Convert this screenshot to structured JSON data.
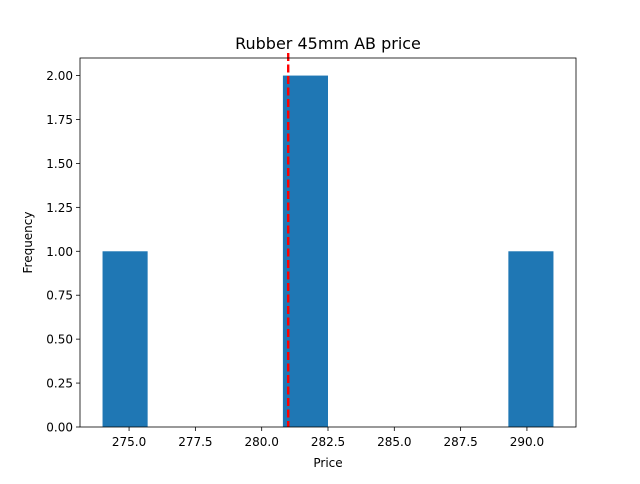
{
  "chart_data": {
    "type": "bar",
    "title": "Rubber 45mm AB price",
    "xlabel": "Price",
    "ylabel": "Frequency",
    "bins": [
      {
        "x0": 274.0,
        "x1": 275.7,
        "count": 1
      },
      {
        "x0": 275.7,
        "x1": 277.4,
        "count": 0
      },
      {
        "x0": 277.4,
        "x1": 279.1,
        "count": 0
      },
      {
        "x0": 279.1,
        "x1": 280.8,
        "count": 0
      },
      {
        "x0": 280.8,
        "x1": 282.5,
        "count": 2
      },
      {
        "x0": 282.5,
        "x1": 284.2,
        "count": 0
      },
      {
        "x0": 284.2,
        "x1": 285.9,
        "count": 0
      },
      {
        "x0": 285.9,
        "x1": 287.6,
        "count": 0
      },
      {
        "x0": 287.6,
        "x1": 289.3,
        "count": 0
      },
      {
        "x0": 289.3,
        "x1": 291.0,
        "count": 1
      }
    ],
    "mean_line": {
      "x": 281.0,
      "color": "#ff0000",
      "style": "dashed"
    },
    "xlim": [
      273.15,
      291.85
    ],
    "ylim": [
      0,
      2.1
    ],
    "xticks": [
      275.0,
      277.5,
      280.0,
      282.5,
      285.0,
      287.5,
      290.0
    ],
    "xtick_labels": [
      "275.0",
      "277.5",
      "280.0",
      "282.5",
      "285.0",
      "287.5",
      "290.0"
    ],
    "yticks": [
      0,
      0.25,
      0.5,
      0.75,
      1.0,
      1.25,
      1.5,
      1.75,
      2.0
    ],
    "ytick_labels": [
      "0.00",
      "0.25",
      "0.50",
      "0.75",
      "1.00",
      "1.25",
      "1.50",
      "1.75",
      "2.00"
    ],
    "bar_color": "#1f77b4",
    "grid": false,
    "legend": "none"
  }
}
